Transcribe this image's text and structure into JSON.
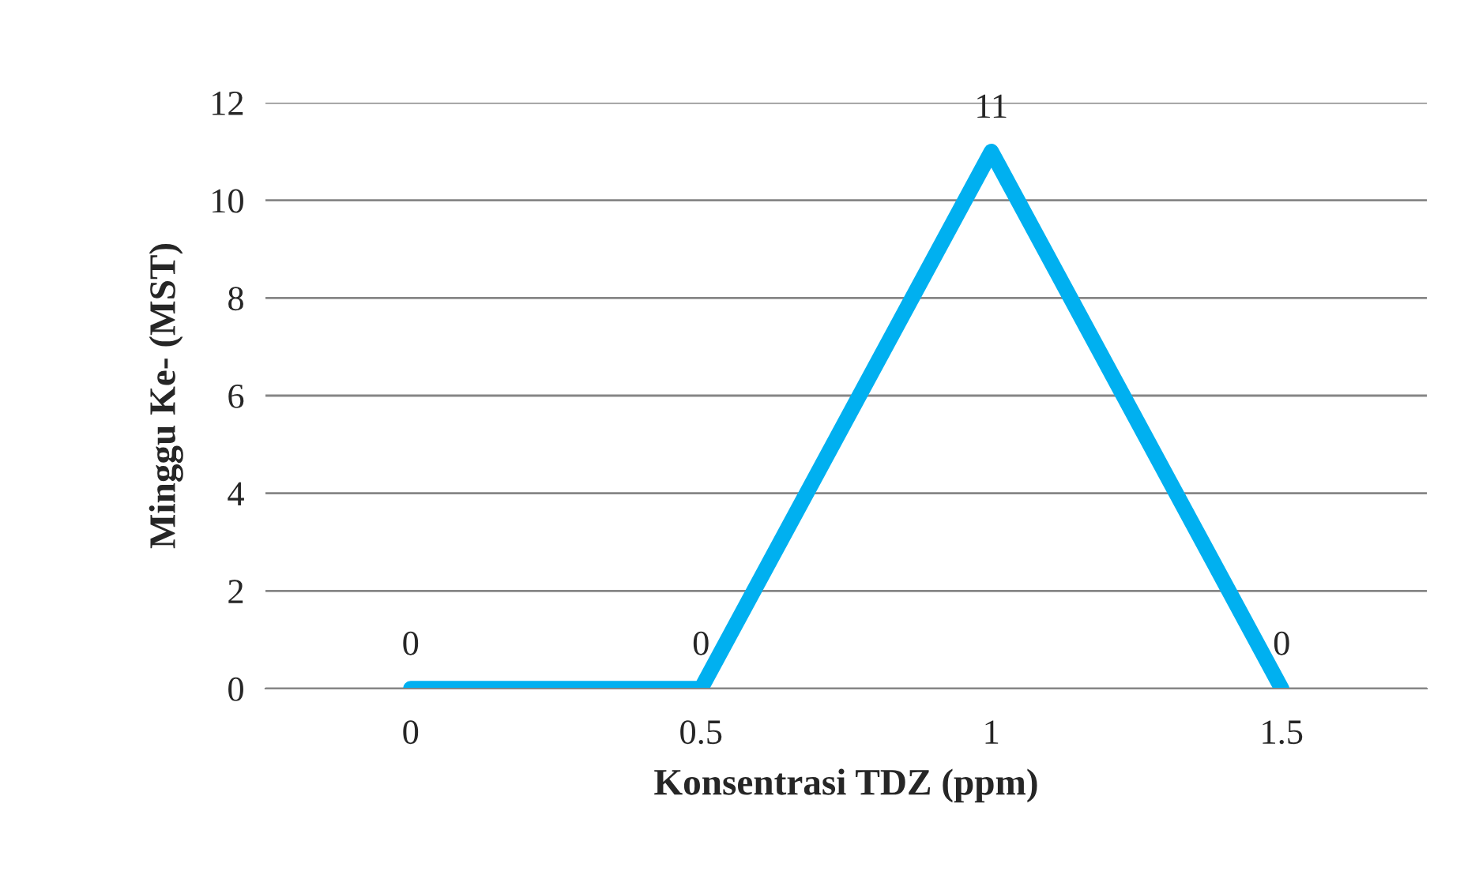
{
  "chart_data": {
    "type": "line",
    "xlabel": "Konsentrasi TDZ (ppm)",
    "ylabel": "Minggu Ke- (MST)",
    "categories": [
      "0",
      "0.5",
      "1",
      "1.5"
    ],
    "series": [
      {
        "color": "#00b0f0",
        "values": [
          0,
          0,
          11,
          0
        ]
      }
    ],
    "ylim": [
      0,
      12
    ],
    "yticks": [
      0,
      2,
      4,
      6,
      8,
      10,
      12
    ],
    "grid": "y",
    "data_labels": true,
    "marker": "none",
    "line_style": "solid"
  }
}
